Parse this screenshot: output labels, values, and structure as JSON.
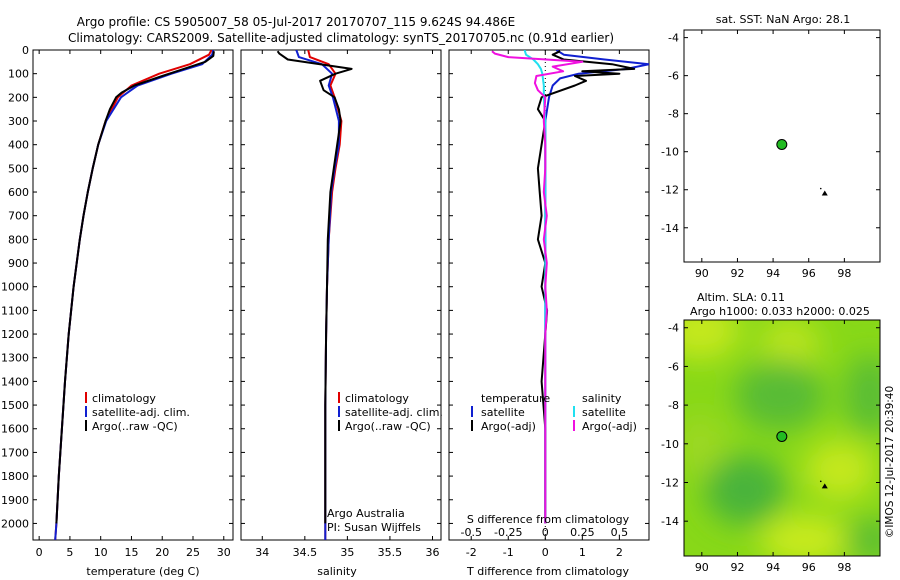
{
  "header": {
    "line1": "Argo profile: CS 5905007_58 05-Jul-2017 20170707_115 9.624S 94.486E",
    "line2": "Climatology: CARS2009. Satellite-adjusted climatology: synTS_20170705.nc (0.91d earlier)"
  },
  "side_label": "©IMOS 12-Jul-2017 20:39:40",
  "chart_data": [
    {
      "type": "line",
      "panel": "temperature",
      "xlabel": "temperature (deg C)",
      "ylabel": "depth",
      "xlim": [
        -1,
        31.5
      ],
      "ylim": [
        2070,
        0
      ],
      "xticks": [
        0,
        5,
        10,
        15,
        20,
        25,
        30
      ],
      "yticks": [
        0,
        100,
        200,
        300,
        400,
        500,
        600,
        700,
        800,
        900,
        1000,
        1100,
        1200,
        1300,
        1400,
        1500,
        1600,
        1700,
        1800,
        1900,
        2000
      ],
      "legend": [
        "climatology",
        "satellite-adj. clim.",
        "Argo(..raw -QC)"
      ],
      "series": [
        {
          "name": "climatology",
          "color": "#e00000",
          "depth": [
            0,
            20,
            60,
            100,
            150,
            200,
            300,
            400,
            500,
            600,
            700,
            800,
            900,
            1000,
            1200,
            1400,
            1600,
            1800,
            2000,
            2070
          ],
          "values": [
            28.0,
            27.6,
            24.5,
            19.5,
            15.0,
            12.8,
            10.8,
            9.6,
            8.7,
            7.9,
            7.2,
            6.6,
            6.1,
            5.6,
            4.8,
            4.2,
            3.7,
            3.2,
            2.8,
            2.6
          ]
        },
        {
          "name": "satellite-adj. clim.",
          "color": "#1020d0",
          "depth": [
            0,
            20,
            60,
            100,
            150,
            200,
            300,
            400,
            500,
            600,
            700,
            800,
            900,
            1000,
            1200,
            1400,
            1600,
            1800,
            2000,
            2070
          ],
          "values": [
            28.3,
            28.1,
            26.5,
            21.5,
            16.0,
            13.3,
            10.9,
            9.6,
            8.7,
            7.9,
            7.2,
            6.6,
            6.1,
            5.6,
            4.8,
            4.2,
            3.7,
            3.2,
            2.8,
            2.6
          ]
        },
        {
          "name": "Argo(..raw -QC)",
          "color": "#000000",
          "depth": [
            5,
            25,
            50,
            80,
            110,
            150,
            180,
            200,
            250,
            300,
            400,
            500,
            600,
            700,
            800,
            900,
            1000,
            1200,
            1400,
            1600,
            1800,
            2000
          ],
          "values": [
            28.4,
            28.3,
            27.0,
            23.5,
            20.0,
            15.5,
            13.4,
            12.5,
            11.5,
            10.8,
            9.6,
            8.7,
            7.9,
            7.2,
            6.6,
            6.1,
            5.6,
            4.8,
            4.2,
            3.7,
            3.2,
            2.8
          ]
        }
      ]
    },
    {
      "type": "line",
      "panel": "salinity",
      "xlabel": "salinity",
      "xlim": [
        33.75,
        36.1
      ],
      "ylim": [
        2070,
        0
      ],
      "xticks": [
        34,
        34.5,
        35,
        35.5,
        36
      ],
      "legend": [
        "climatology",
        "satellite-adj. clim.",
        "Argo(..raw -QC)"
      ],
      "annotation": [
        "Argo Australia",
        "PI: Susan Wijffels"
      ],
      "series": [
        {
          "name": "climatology",
          "color": "#e00000",
          "depth": [
            0,
            30,
            60,
            100,
            150,
            200,
            300,
            400,
            500,
            600,
            800,
            1000,
            1200,
            1500,
            1800,
            2070
          ],
          "values": [
            34.54,
            34.56,
            34.78,
            34.86,
            34.8,
            34.85,
            34.93,
            34.91,
            34.86,
            34.82,
            34.78,
            34.76,
            34.75,
            34.74,
            34.74,
            34.74
          ]
        },
        {
          "name": "satellite-adj. clim.",
          "color": "#1020d0",
          "depth": [
            0,
            30,
            60,
            100,
            150,
            200,
            300,
            400,
            500,
            600,
            800,
            1000,
            1200,
            1500,
            1800,
            2070
          ],
          "values": [
            34.4,
            34.43,
            34.7,
            34.82,
            34.78,
            34.83,
            34.9,
            34.9,
            34.85,
            34.81,
            34.78,
            34.76,
            34.75,
            34.74,
            34.74,
            34.74
          ]
        },
        {
          "name": "Argo(..raw -QC)",
          "color": "#000000",
          "depth": [
            5,
            15,
            40,
            80,
            100,
            130,
            170,
            200,
            250,
            300,
            350,
            400,
            500,
            600,
            800,
            1000,
            1200,
            1500,
            1800,
            2000
          ],
          "values": [
            34.18,
            34.2,
            34.3,
            35.05,
            34.86,
            34.68,
            34.72,
            34.85,
            34.9,
            34.92,
            34.9,
            34.88,
            34.84,
            34.8,
            34.77,
            34.76,
            34.75,
            34.74,
            34.74,
            34.74
          ]
        }
      ]
    },
    {
      "type": "line",
      "panel": "difference",
      "xlabel": "T difference from climatology",
      "top_axis_label": "S difference from climatology",
      "xlim": [
        -2.6,
        2.8
      ],
      "top_xlim": [
        -0.65,
        0.7
      ],
      "ylim": [
        2070,
        0
      ],
      "xticks": [
        -2,
        -1,
        0,
        1,
        2
      ],
      "top_xticks": [
        "-0.5",
        "-0.25",
        "0",
        "0.25",
        "0.5"
      ],
      "top_xtick_values": [
        -0.5,
        -0.25,
        0,
        0.25,
        0.5
      ],
      "legend": {
        "temperature_title": "temperature",
        "salinity_title": "salinity",
        "satellite_t": "satellite",
        "argo_t": "Argo(-adj)",
        "satellite_s": "satellite",
        "argo_s": "Argo(-adj)"
      },
      "series": [
        {
          "name": "temperature satellite",
          "color": "#1020d0",
          "depth": [
            0,
            20,
            40,
            60,
            80,
            100,
            120,
            150,
            200,
            300,
            400,
            600,
            800,
            1000,
            1200,
            1500,
            1800,
            2000
          ],
          "values": [
            0.3,
            0.5,
            1.6,
            2.8,
            2.2,
            0.9,
            0.4,
            0.2,
            0.1,
            0.0,
            0.0,
            0.0,
            0.0,
            0.0,
            0.0,
            0.0,
            0.0,
            0.0
          ]
        },
        {
          "name": "temperature Argo(-adj)",
          "color": "#000000",
          "depth": [
            5,
            20,
            40,
            60,
            80,
            90,
            100,
            110,
            130,
            150,
            200,
            250,
            300,
            400,
            500,
            600,
            700,
            800,
            900,
            1000,
            1100,
            1200,
            1400,
            1600,
            1800,
            2000
          ],
          "values": [
            0.4,
            0.2,
            0.5,
            1.8,
            2.4,
            1.0,
            2.0,
            0.8,
            1.1,
            0.8,
            -0.1,
            -0.2,
            0.0,
            -0.1,
            -0.2,
            -0.15,
            -0.1,
            -0.2,
            0.0,
            -0.1,
            0.05,
            0.0,
            -0.1,
            0.0,
            0.0,
            0.0
          ]
        },
        {
          "name": "salinity satellite",
          "color": "#20e0f0",
          "axis": "top",
          "depth": [
            0,
            20,
            40,
            60,
            80,
            100,
            150,
            200,
            300,
            500,
            800,
            1000,
            1200,
            1500,
            1800,
            2000
          ],
          "values": [
            -0.14,
            -0.13,
            -0.08,
            -0.05,
            -0.03,
            -0.02,
            -0.01,
            -0.01,
            0.0,
            0.0,
            0.0,
            0.0,
            0.0,
            0.0,
            0.0,
            0.0
          ]
        },
        {
          "name": "salinity Argo(-adj)",
          "color": "#f010e0",
          "axis": "top",
          "depth": [
            5,
            15,
            30,
            50,
            70,
            90,
            110,
            140,
            170,
            200,
            300,
            400,
            500,
            600,
            700,
            800,
            900,
            1000,
            1100,
            1200,
            1500,
            1800,
            2000
          ],
          "values": [
            -0.36,
            -0.34,
            -0.25,
            0.25,
            0.05,
            0.12,
            -0.06,
            -0.07,
            -0.05,
            0.0,
            -0.01,
            0.0,
            0.0,
            -0.01,
            0.01,
            -0.01,
            0.01,
            0.0,
            0.01,
            0.0,
            0.0,
            0.0,
            0.0
          ]
        }
      ]
    },
    {
      "type": "scatter",
      "panel": "sst-map",
      "title": "sat. SST: NaN Argo: 28.1",
      "xlim": [
        89,
        100
      ],
      "ylim": [
        -15.8,
        -3.6
      ],
      "xticks": [
        90,
        92,
        94,
        96,
        98
      ],
      "yticks": [
        -4,
        -6,
        -8,
        -10,
        -12,
        -14
      ],
      "points": [
        {
          "name": "argo-position",
          "x": 94.49,
          "y": -9.62,
          "color": "#22bb22"
        },
        {
          "name": "previous-position",
          "x": 96.9,
          "y": -12.2,
          "color": "#000000"
        }
      ]
    },
    {
      "type": "heatmap",
      "panel": "sla-map",
      "title_line1": "Altim. SLA: 0.11",
      "title_line2": "Argo h1000: 0.033 h2000: 0.025",
      "xlim": [
        89,
        100
      ],
      "ylim": [
        -15.8,
        -3.6
      ],
      "xticks": [
        90,
        92,
        94,
        96,
        98
      ],
      "yticks": [
        -4,
        -6,
        -8,
        -10,
        -12,
        -14
      ],
      "colors": {
        "background": "#88d818",
        "dark": "#4ab43a",
        "light": "#c4e81a"
      },
      "points": [
        {
          "name": "argo-position",
          "x": 94.49,
          "y": -9.62,
          "color": "#22bb22"
        },
        {
          "name": "previous-position",
          "x": 96.9,
          "y": -12.2,
          "color": "#000000"
        }
      ]
    }
  ]
}
